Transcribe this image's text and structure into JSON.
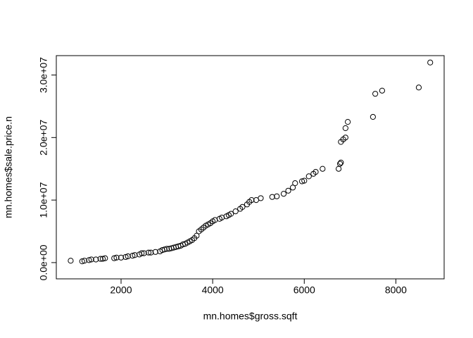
{
  "chart_data": {
    "type": "scatter",
    "x_label": "mn.homes$gross.sqft",
    "y_label": "mn.homes$sale.price.n",
    "x": [
      900,
      1150,
      1200,
      1300,
      1350,
      1450,
      1550,
      1600,
      1650,
      1850,
      1900,
      2000,
      2100,
      2150,
      2250,
      2300,
      2400,
      2450,
      2500,
      2600,
      2650,
      2750,
      2850,
      2900,
      2950,
      3000,
      3050,
      3100,
      3150,
      3200,
      3250,
      3300,
      3350,
      3400,
      3450,
      3500,
      3550,
      3600,
      3650,
      3700,
      3750,
      3800,
      3850,
      3900,
      3950,
      4000,
      4050,
      4150,
      4200,
      4300,
      4350,
      4400,
      4500,
      4600,
      4650,
      4750,
      4800,
      4850,
      4950,
      5050,
      5300,
      5400,
      5550,
      5650,
      5750,
      5800,
      5950,
      6000,
      6100,
      6200,
      6250,
      6400,
      6750,
      6780,
      6800,
      6800,
      6850,
      6900,
      6900,
      6950,
      7500,
      7550,
      7700,
      8500,
      8750
    ],
    "series": [
      {
        "name": "sale.price.n",
        "color": "#000000",
        "values": [
          300000,
          200000,
          300000,
          400000,
          500000,
          500000,
          600000,
          600000,
          700000,
          700000,
          800000,
          800000,
          900000,
          1000000,
          1100000,
          1200000,
          1300000,
          1500000,
          1500000,
          1600000,
          1600000,
          1700000,
          1800000,
          2000000,
          2100000,
          2200000,
          2200000,
          2300000,
          2400000,
          2500000,
          2600000,
          2700000,
          2900000,
          3000000,
          3200000,
          3400000,
          3600000,
          3900000,
          4300000,
          5000000,
          5300000,
          5600000,
          5900000,
          6100000,
          6300000,
          6600000,
          6800000,
          7000000,
          7200000,
          7400000,
          7600000,
          7800000,
          8200000,
          8600000,
          8900000,
          9300000,
          9700000,
          10000000,
          10000000,
          10300000,
          10500000,
          10600000,
          11000000,
          11500000,
          12000000,
          12700000,
          13000000,
          13100000,
          13800000,
          14200000,
          14500000,
          15000000,
          15000000,
          15800000,
          16000000,
          19300000,
          19700000,
          20000000,
          21500000,
          22500000,
          23300000,
          27000000,
          27500000,
          28000000,
          32000000
        ]
      }
    ],
    "xlim": [
      586,
      9054
    ],
    "ylim": [
      -2600000,
      33100000
    ],
    "xticks": [
      2000,
      4000,
      6000,
      8000
    ],
    "yticks": [
      {
        "value": 0,
        "label": "0.0e+00"
      },
      {
        "value": 10000000,
        "label": "1.0e+07"
      },
      {
        "value": 20000000,
        "label": "2.0e+07"
      },
      {
        "value": 30000000,
        "label": "3.0e+07"
      }
    ],
    "grid": false
  }
}
